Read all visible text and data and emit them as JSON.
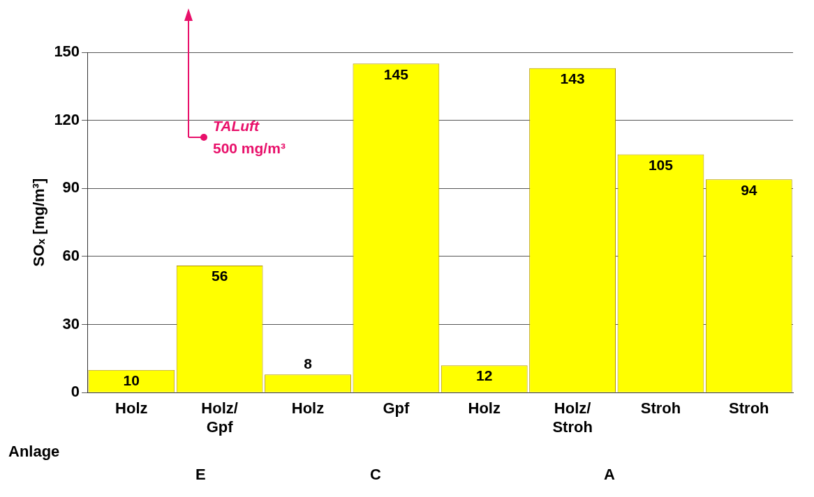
{
  "chart_data": {
    "type": "bar",
    "ylabel": "SOₓ [mg/m³]",
    "categories": [
      "Holz",
      "Holz/Gpf",
      "Holz",
      "Gpf",
      "Holz",
      "Holz/Stroh",
      "Stroh",
      "Stroh"
    ],
    "values": [
      10,
      56,
      8,
      145,
      12,
      143,
      105,
      94
    ],
    "color": "#ffff00",
    "ylim": [
      0,
      150
    ],
    "yticks": [
      0,
      30,
      60,
      90,
      120,
      150
    ],
    "grid": "y",
    "legend": false,
    "data_labels": true,
    "annotations": [
      "TALuft\n500 mg/m³",
      "Anlage",
      "E",
      "C",
      "A"
    ]
  }
}
